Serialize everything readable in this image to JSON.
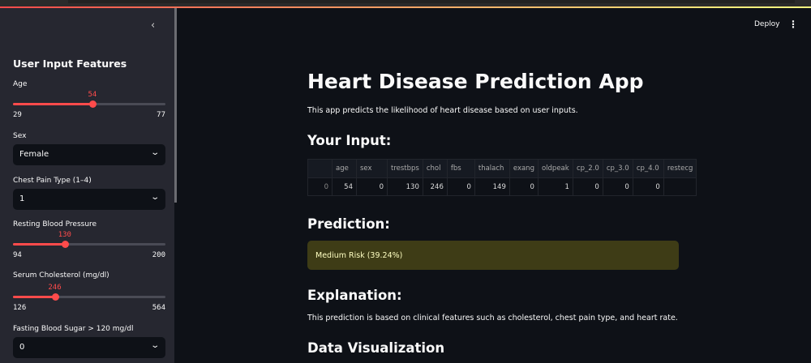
{
  "sidebar": {
    "title": "User Input Features",
    "sliders": [
      {
        "label": "Age",
        "value": 54,
        "min": 29,
        "max": 77
      },
      {
        "label": "Resting Blood Pressure",
        "value": 130,
        "min": 94,
        "max": 200
      },
      {
        "label": "Serum Cholesterol (mg/dl)",
        "value": 246,
        "min": 126,
        "max": 564
      }
    ],
    "selects": [
      {
        "label": "Sex",
        "value": "Female"
      },
      {
        "label": "Chest Pain Type (1–4)",
        "value": "1"
      },
      {
        "label": "Fasting Blood Sugar > 120 mg/dl",
        "value": "0"
      }
    ]
  },
  "header": {
    "deploy": "Deploy"
  },
  "main": {
    "title": "Heart Disease Prediction App",
    "subtitle": "This app predicts the likelihood of heart disease based on user inputs.",
    "input_heading": "Your Input:",
    "table": {
      "columns": [
        "",
        "age",
        "sex",
        "trestbps",
        "chol",
        "fbs",
        "thalach",
        "exang",
        "oldpeak",
        "cp_2.0",
        "cp_3.0",
        "cp_4.0",
        "restecg"
      ],
      "rows": [
        [
          "0",
          "54",
          "0",
          "130",
          "246",
          "0",
          "149",
          "0",
          "1",
          "0",
          "0",
          "0",
          ""
        ]
      ]
    },
    "prediction_heading": "Prediction:",
    "prediction": "Medium Risk (39.24%)",
    "explanation_heading": "Explanation:",
    "explanation": "This prediction is based on clinical features such as cholesterol, chest pain type, and heart rate.",
    "viz_heading": "Data Visualization"
  },
  "colors": {
    "accent": "#ff4b4b",
    "warning_bg": "#3e3c16",
    "warning_text": "#ffffc2"
  }
}
